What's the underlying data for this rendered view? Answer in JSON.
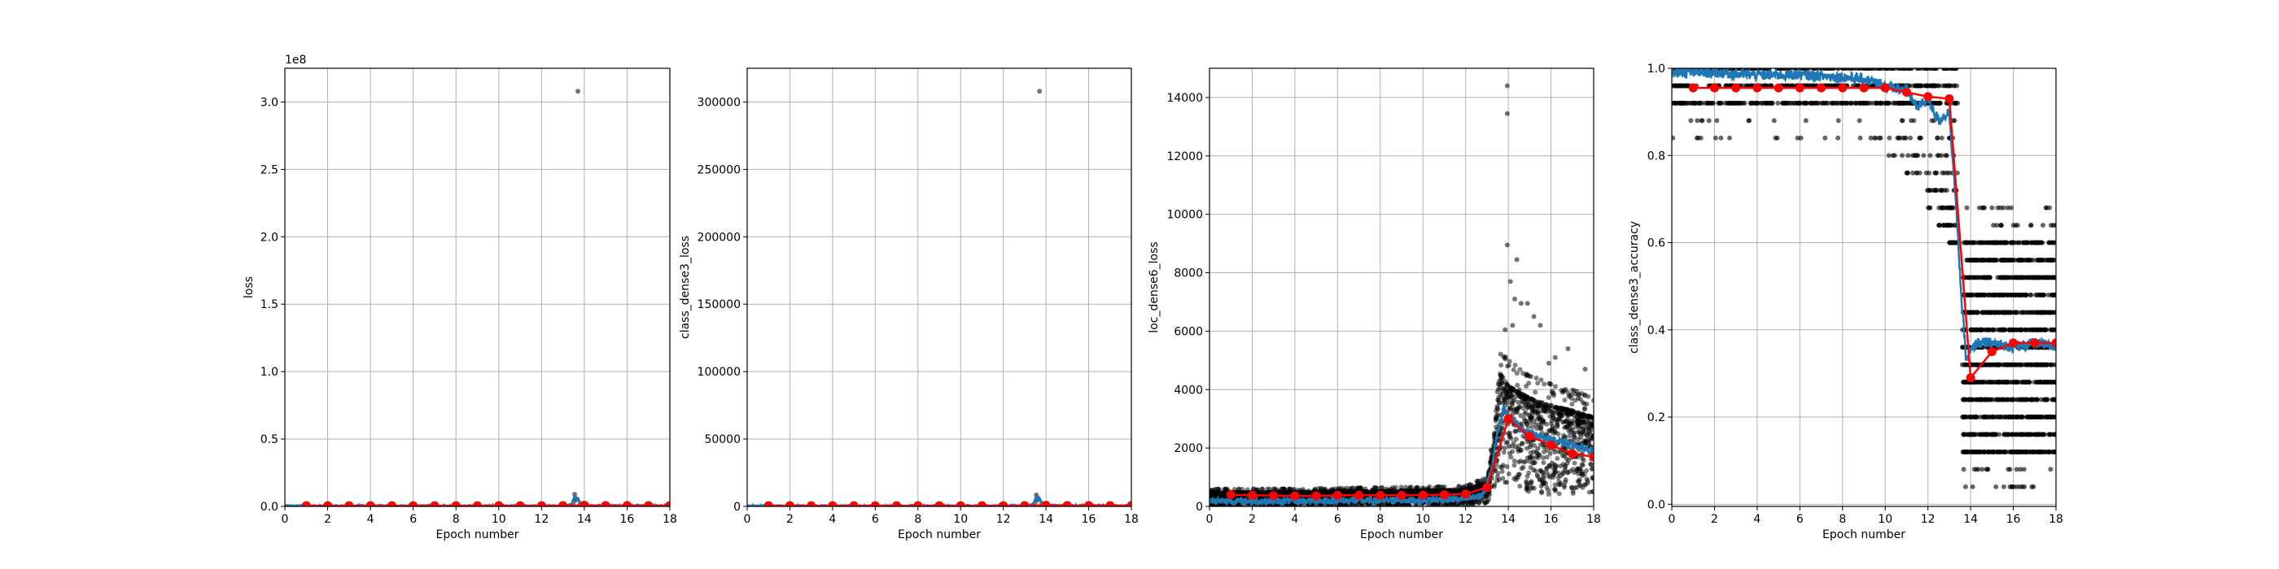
{
  "chart_data": [
    {
      "type": "scatter",
      "title": "",
      "xlabel": "Epoch number",
      "ylabel": "loss",
      "xlim": [
        0,
        18
      ],
      "ylim": [
        0,
        3.25
      ],
      "y_offset_label": "1e8",
      "xticks": [
        "0",
        "2",
        "4",
        "6",
        "8",
        "10",
        "12",
        "14",
        "16",
        "18"
      ],
      "yticks": [
        "0.0",
        "0.5",
        "1.0",
        "1.5",
        "2.0",
        "2.5",
        "3.0"
      ],
      "ytick_values": [
        0,
        0.5,
        1.0,
        1.5,
        2.0,
        2.5,
        3.0
      ],
      "grid": true,
      "series": [
        {
          "name": "",
          "kind": "scatter",
          "points": [
            [
              13.7,
              3.08
            ],
            [
              13.55,
              0.09
            ],
            [
              13.6,
              0.06
            ],
            [
              13.65,
              0.05
            ],
            [
              13.5,
              0.03
            ],
            [
              13.8,
              0.02
            ],
            [
              14.0,
              0.01
            ]
          ]
        },
        {
          "name": "",
          "kind": "line",
          "x": [
            0,
            4,
            8,
            12,
            13.2,
            13.4,
            13.55,
            13.6,
            13.7,
            13.8,
            14.0,
            14.5,
            16,
            18
          ],
          "y": [
            0.004,
            0.004,
            0.004,
            0.004,
            0.005,
            0.02,
            0.08,
            0.05,
            0.06,
            0.03,
            0.01,
            0.006,
            0.006,
            0.006
          ]
        },
        {
          "name": "",
          "kind": "line-markers",
          "x": [
            1,
            2,
            3,
            4,
            5,
            6,
            7,
            8,
            9,
            10,
            11,
            12,
            13,
            14,
            15,
            16,
            17,
            18
          ],
          "y": [
            0.005,
            0.005,
            0.005,
            0.005,
            0.005,
            0.005,
            0.005,
            0.005,
            0.005,
            0.005,
            0.005,
            0.005,
            0.006,
            0.008,
            0.006,
            0.006,
            0.006,
            0.006
          ]
        }
      ]
    },
    {
      "type": "scatter",
      "title": "",
      "xlabel": "Epoch number",
      "ylabel": "class_dense3_loss",
      "xlim": [
        0,
        18
      ],
      "ylim": [
        0,
        325000
      ],
      "xticks": [
        "0",
        "2",
        "4",
        "6",
        "8",
        "10",
        "12",
        "14",
        "16",
        "18"
      ],
      "yticks": [
        "0",
        "50000",
        "100000",
        "150000",
        "200000",
        "250000",
        "300000"
      ],
      "ytick_values": [
        0,
        50000,
        100000,
        150000,
        200000,
        250000,
        300000
      ],
      "grid": true,
      "series": [
        {
          "name": "",
          "kind": "scatter",
          "points": [
            [
              13.7,
              308000
            ],
            [
              13.55,
              8500
            ],
            [
              13.6,
              6000
            ],
            [
              13.65,
              5000
            ],
            [
              13.5,
              3000
            ],
            [
              13.8,
              2000
            ],
            [
              14.0,
              1000
            ]
          ]
        },
        {
          "name": "",
          "kind": "line",
          "x": [
            0,
            4,
            8,
            12,
            13.2,
            13.4,
            13.55,
            13.6,
            13.7,
            13.8,
            14.0,
            14.5,
            16,
            18
          ],
          "y": [
            400,
            400,
            400,
            400,
            500,
            2000,
            8000,
            5000,
            6000,
            3000,
            1000,
            600,
            600,
            600
          ]
        },
        {
          "name": "",
          "kind": "line-markers",
          "x": [
            1,
            2,
            3,
            4,
            5,
            6,
            7,
            8,
            9,
            10,
            11,
            12,
            13,
            14,
            15,
            16,
            17,
            18
          ],
          "y": [
            500,
            500,
            500,
            500,
            500,
            500,
            500,
            500,
            500,
            500,
            500,
            500,
            600,
            800,
            600,
            600,
            600,
            600
          ]
        }
      ]
    },
    {
      "type": "scatter",
      "title": "",
      "xlabel": "Epoch number",
      "ylabel": "loc_dense6_loss",
      "xlim": [
        0,
        18
      ],
      "ylim": [
        0,
        15000
      ],
      "xticks": [
        "0",
        "2",
        "4",
        "6",
        "8",
        "10",
        "12",
        "14",
        "16",
        "18"
      ],
      "yticks": [
        "0",
        "2000",
        "4000",
        "6000",
        "8000",
        "10000",
        "12000",
        "14000"
      ],
      "ytick_values": [
        0,
        2000,
        4000,
        6000,
        8000,
        10000,
        12000,
        14000
      ],
      "grid": true,
      "series": [
        {
          "name": "",
          "kind": "scatter-band",
          "x": [
            0,
            4,
            8,
            12,
            13.0,
            13.3,
            13.6,
            14.0,
            15,
            16,
            17,
            18
          ],
          "y_low": [
            0,
            0,
            0,
            0,
            100,
            500,
            800,
            600,
            500,
            400,
            400,
            400
          ],
          "y_high": [
            600,
            600,
            650,
            700,
            1000,
            2500,
            5500,
            5000,
            4500,
            4200,
            4000,
            3700
          ]
        },
        {
          "name": "",
          "kind": "scatter",
          "points": [
            [
              13.95,
              14400
            ],
            [
              13.95,
              13450
            ],
            [
              13.95,
              8950
            ],
            [
              14.1,
              7700
            ],
            [
              14.4,
              8450
            ],
            [
              14.3,
              7100
            ],
            [
              14.6,
              6950
            ],
            [
              14.9,
              6950
            ],
            [
              15.2,
              6500
            ],
            [
              14.2,
              6200
            ],
            [
              13.85,
              6050
            ],
            [
              15.5,
              6200
            ],
            [
              16.8,
              5400
            ],
            [
              17.6,
              4700
            ],
            [
              16.2,
              5100
            ],
            [
              15.9,
              4900
            ]
          ]
        },
        {
          "name": "",
          "kind": "line",
          "x": [
            0,
            2,
            4,
            6,
            8,
            10,
            12,
            12.8,
            13.2,
            13.5,
            13.8,
            14.0,
            14.5,
            15,
            16,
            17,
            18
          ],
          "y": [
            180,
            180,
            180,
            200,
            200,
            220,
            250,
            400,
            1200,
            2600,
            3400,
            3100,
            2700,
            2500,
            2300,
            2100,
            1900
          ]
        },
        {
          "name": "",
          "kind": "line-markers",
          "x": [
            1,
            2,
            3,
            4,
            5,
            6,
            7,
            8,
            9,
            10,
            11,
            12,
            13,
            14,
            15,
            16,
            17,
            18
          ],
          "y": [
            400,
            380,
            370,
            360,
            360,
            380,
            380,
            380,
            380,
            390,
            400,
            420,
            650,
            3000,
            2400,
            2100,
            1800,
            1700
          ]
        }
      ]
    },
    {
      "type": "scatter",
      "title": "",
      "xlabel": "Epoch number",
      "ylabel": "class_dense3_accuracy",
      "xlim": [
        0,
        18
      ],
      "ylim": [
        -0.005,
        1.0
      ],
      "xticks": [
        "0",
        "2",
        "4",
        "6",
        "8",
        "10",
        "12",
        "14",
        "16",
        "18"
      ],
      "yticks": [
        "0.0",
        "0.2",
        "0.4",
        "0.6",
        "0.8",
        "1.0"
      ],
      "ytick_values": [
        0,
        0.2,
        0.4,
        0.6,
        0.8,
        1.0
      ],
      "grid": true,
      "series": [
        {
          "name": "",
          "kind": "scatter-levels-early",
          "x_range": [
            0,
            13.4
          ],
          "levels": [
            1.0,
            0.96,
            0.92,
            0.88,
            0.84
          ],
          "sparse_levels": [
            0.84,
            0.8,
            0.76,
            0.72,
            0.68,
            0.64,
            0.6
          ],
          "sparse_x_start": [
            9,
            10,
            11,
            11.5,
            12,
            12.5,
            13
          ]
        },
        {
          "name": "",
          "kind": "scatter-levels-late",
          "x_range": [
            13.6,
            18
          ],
          "levels": [
            0.12,
            0.16,
            0.2,
            0.24,
            0.28,
            0.32,
            0.36,
            0.4,
            0.44,
            0.48,
            0.52,
            0.56,
            0.6
          ],
          "sparse_levels": [
            0.04,
            0.08,
            0.64,
            0.68
          ]
        },
        {
          "name": "",
          "kind": "line",
          "x": [
            0,
            2,
            4,
            6,
            8,
            9,
            10,
            11,
            11.5,
            12,
            12.5,
            13,
            13.3,
            13.6,
            13.8,
            14.0,
            14.3,
            15,
            16,
            17,
            18
          ],
          "y": [
            0.99,
            0.99,
            0.985,
            0.985,
            0.98,
            0.975,
            0.96,
            0.95,
            0.91,
            0.93,
            0.88,
            0.9,
            0.7,
            0.45,
            0.33,
            0.35,
            0.37,
            0.37,
            0.36,
            0.37,
            0.36
          ]
        },
        {
          "name": "",
          "kind": "line-markers",
          "x": [
            1,
            2,
            3,
            4,
            5,
            6,
            7,
            8,
            9,
            10,
            11,
            12,
            13,
            14,
            15,
            16,
            17,
            18
          ],
          "y": [
            0.955,
            0.955,
            0.955,
            0.955,
            0.955,
            0.955,
            0.955,
            0.955,
            0.955,
            0.955,
            0.945,
            0.935,
            0.93,
            0.29,
            0.35,
            0.37,
            0.37,
            0.37
          ]
        }
      ]
    }
  ],
  "colors": {
    "scatter": "#000000",
    "line": "#1f77b4",
    "markers": "#ff0000",
    "grid": "#b0b0b0",
    "axes": "#000000"
  }
}
